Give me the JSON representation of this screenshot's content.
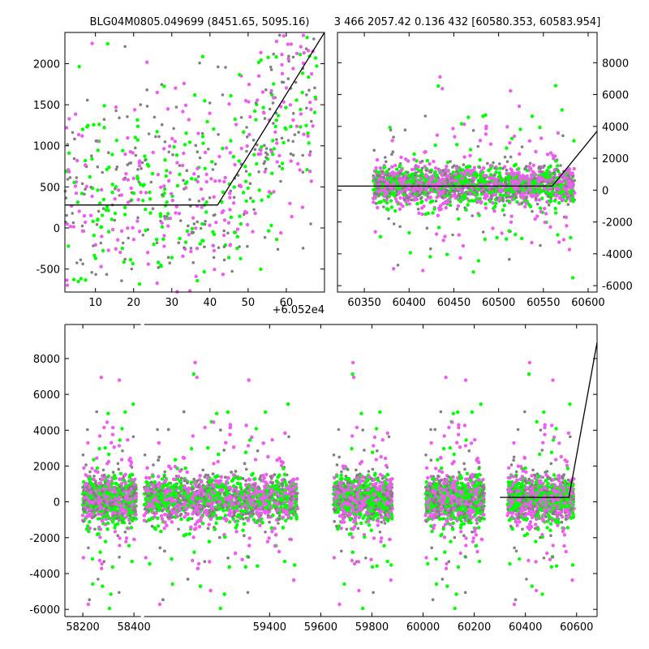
{
  "titles": {
    "left": "BLG04M0805.049699 (8451.65, 5095.16)",
    "right": "3 466 2057.42 0.136 432 [60580.353, 60583.954]"
  },
  "colors": {
    "gray": "#808080",
    "green": "#00ff00",
    "magenta": "#ee5eee",
    "model": "#000000"
  },
  "chart_data": [
    {
      "id": "zoom",
      "type": "scatter",
      "x_offset_label": "+6.052e4",
      "xlim": [
        2,
        70
      ],
      "ylim": [
        -780,
        2380
      ],
      "xticks": [
        10,
        20,
        30,
        40,
        50,
        60
      ],
      "yticks": [
        -500,
        0,
        500,
        1000,
        1500,
        2000
      ],
      "series_colors": [
        "gray",
        "green",
        "magenta"
      ],
      "model_line": [
        [
          2,
          280
        ],
        [
          42,
          280
        ],
        [
          70,
          2380
        ]
      ]
    },
    {
      "id": "recent",
      "type": "scatter",
      "xlim": [
        60320,
        60610
      ],
      "ylim": [
        -6400,
        9900
      ],
      "xticks": [
        60350,
        60400,
        60450,
        60500,
        60550,
        60600
      ],
      "yticks": [
        -6000,
        -4000,
        -2000,
        0,
        2000,
        4000,
        6000,
        8000
      ],
      "yaxis_side": "right",
      "seasons": [
        [
          60360,
          60585
        ]
      ],
      "model_line": [
        [
          60320,
          250
        ],
        [
          60560,
          250
        ],
        [
          60610,
          3700
        ]
      ]
    },
    {
      "id": "full",
      "type": "scatter",
      "xlim": [
        58130,
        60680
      ],
      "ylim": [
        -6400,
        9900
      ],
      "xticks": [
        58200,
        58400,
        59400,
        59600,
        59800,
        60000,
        60200,
        60400,
        60600
      ],
      "yticks": [
        -6000,
        -4000,
        -2000,
        0,
        2000,
        4000,
        6000,
        8000
      ],
      "axis_break": [
        58430,
        58900
      ],
      "seasons": [
        [
          58200,
          58410
        ],
        [
          58910,
          59510
        ],
        [
          59650,
          59880
        ],
        [
          60010,
          60240
        ],
        [
          60330,
          60590
        ]
      ],
      "model_line": [
        [
          60300,
          250
        ],
        [
          60570,
          250
        ],
        [
          60680,
          8900
        ]
      ]
    }
  ]
}
